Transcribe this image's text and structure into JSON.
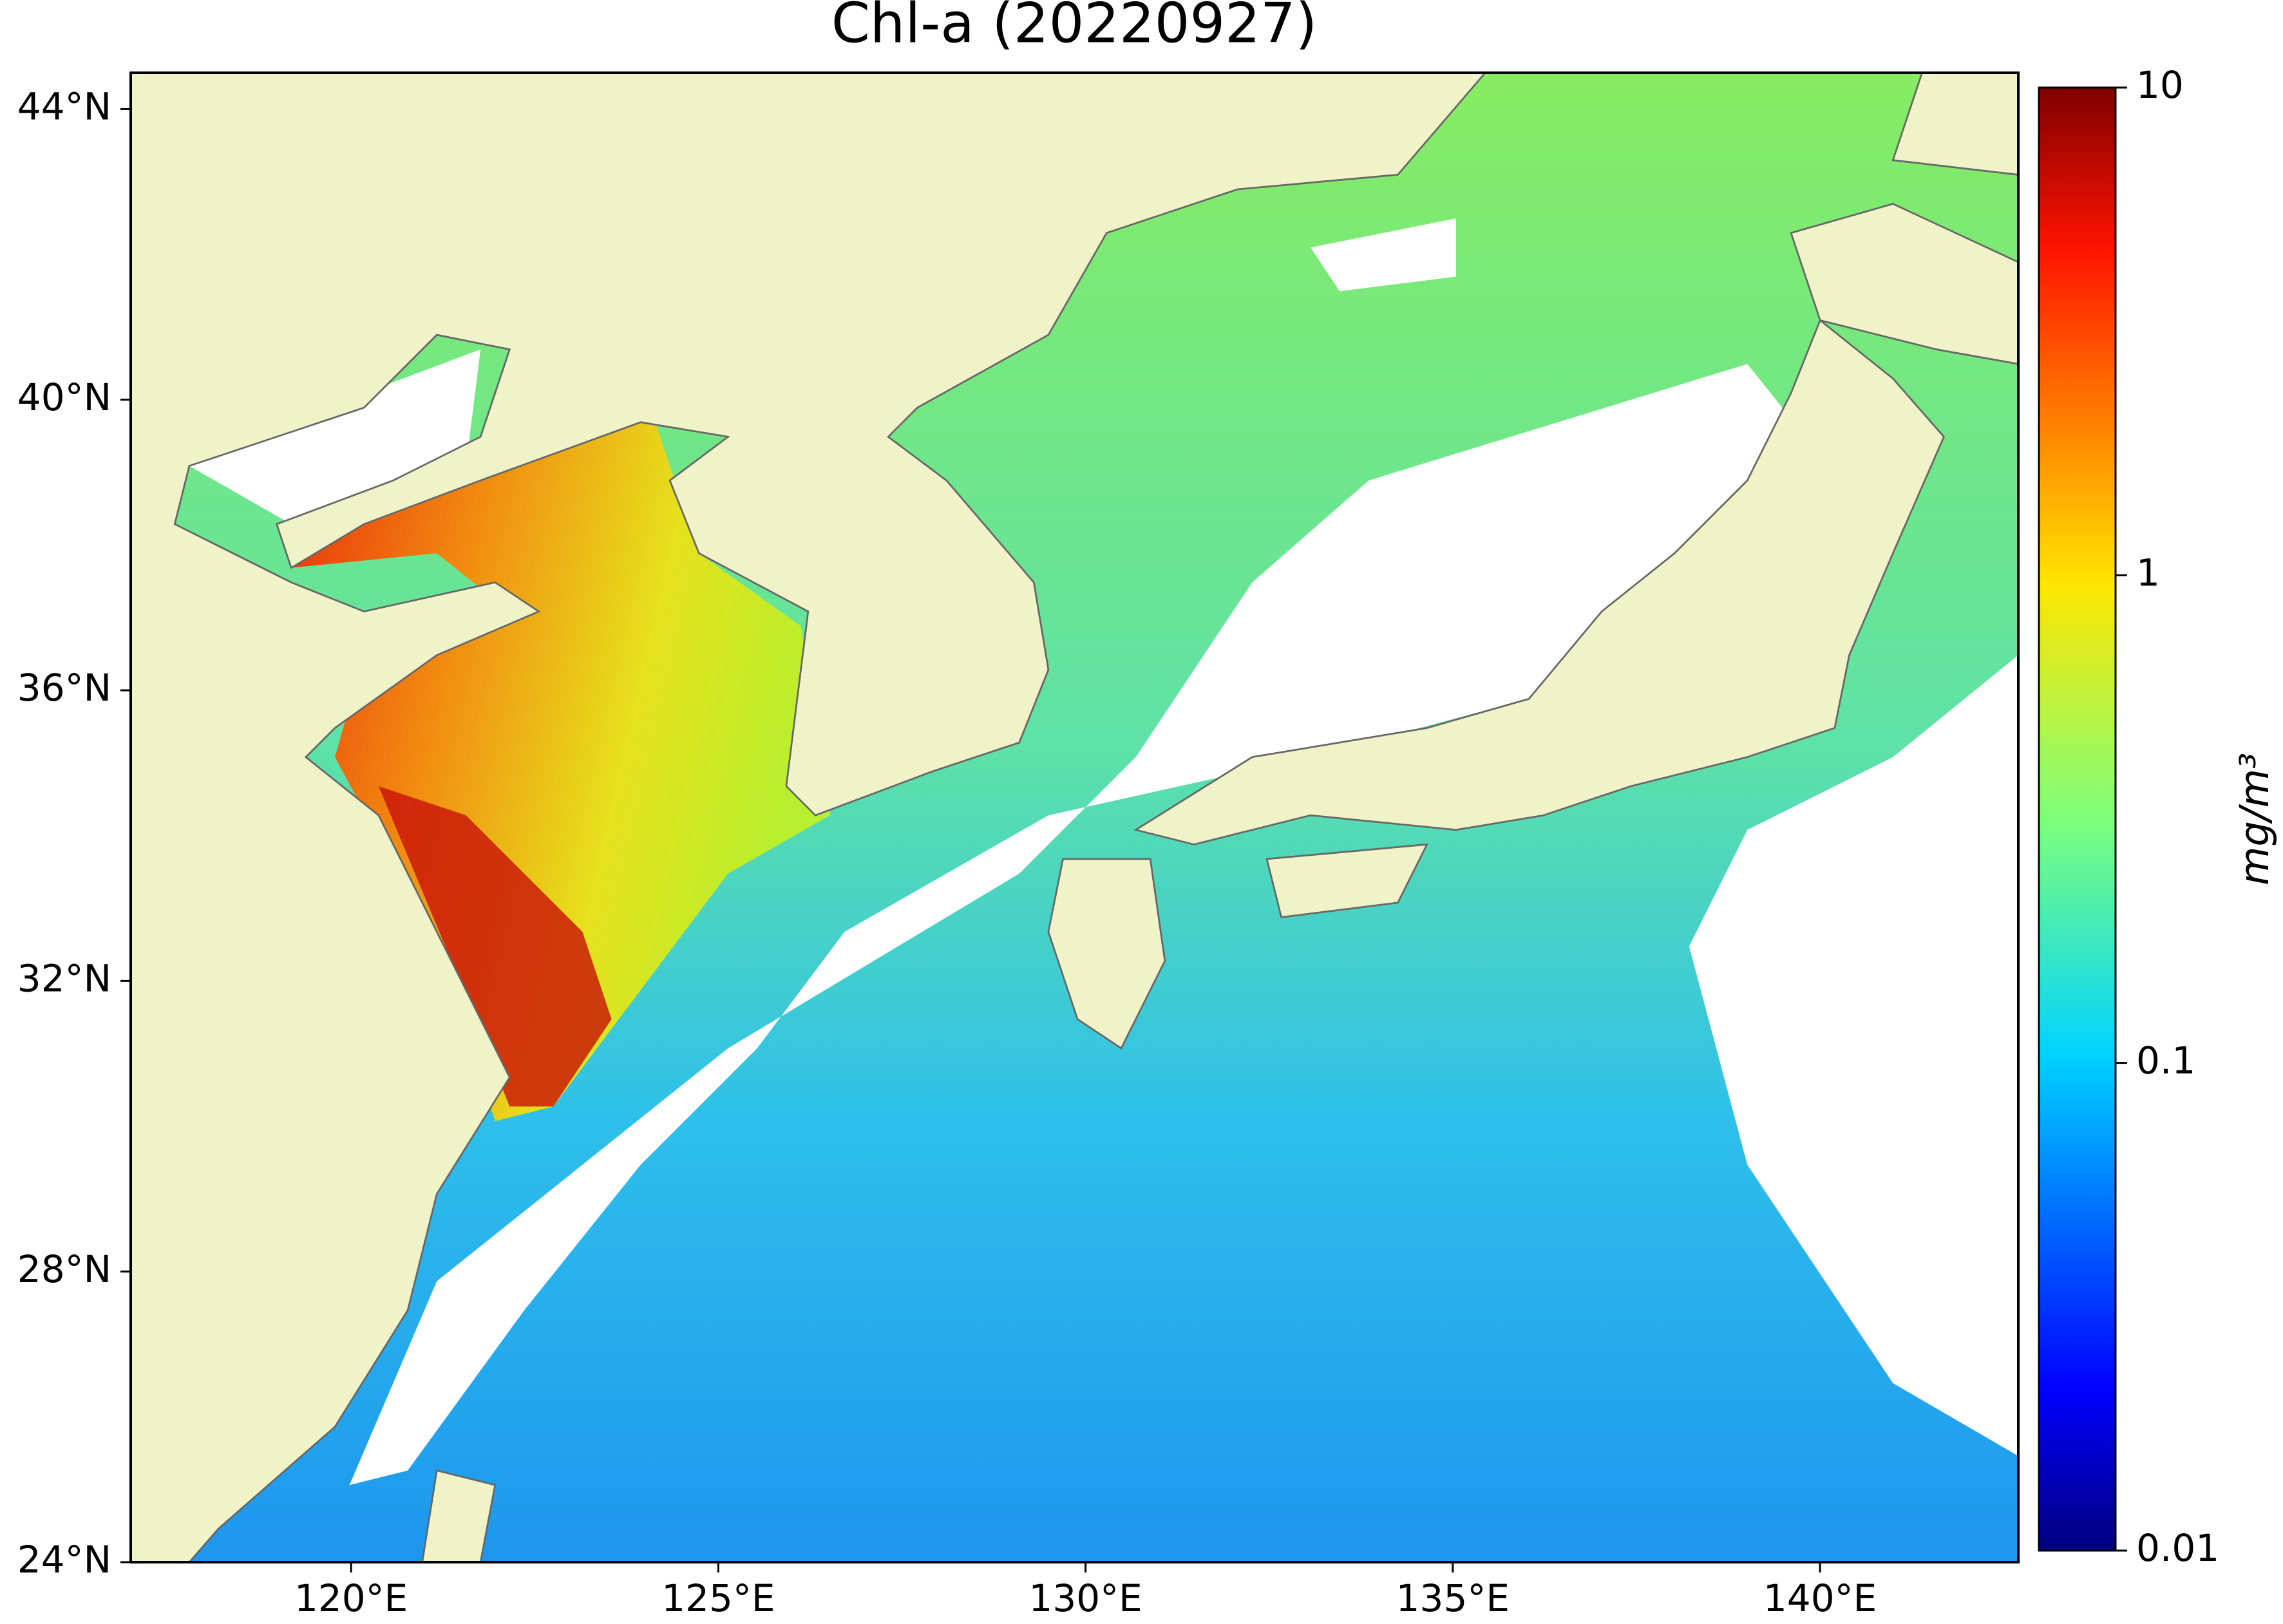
{
  "chart_data": {
    "type": "map",
    "title": "Chl-a (20220927)",
    "xlim": [
      117,
      142.7
    ],
    "ylim": [
      24,
      44.5
    ],
    "xticks": [
      {
        "value": 120,
        "label": "120°E"
      },
      {
        "value": 125,
        "label": "125°E"
      },
      {
        "value": 130,
        "label": "130°E"
      },
      {
        "value": 135,
        "label": "135°E"
      },
      {
        "value": 140,
        "label": "140°E"
      }
    ],
    "yticks": [
      {
        "value": 24,
        "label": "24°N"
      },
      {
        "value": 28,
        "label": "28°N"
      },
      {
        "value": 32,
        "label": "32°N"
      },
      {
        "value": 36,
        "label": "36°N"
      },
      {
        "value": 40,
        "label": "40°N"
      },
      {
        "value": 44,
        "label": "44°N"
      }
    ],
    "colorbar": {
      "label": "mg/m³",
      "scale": "log",
      "colormap": "jet",
      "lim": [
        0.01,
        10
      ],
      "ticks": [
        0.01,
        0.1,
        1,
        10
      ]
    }
  }
}
